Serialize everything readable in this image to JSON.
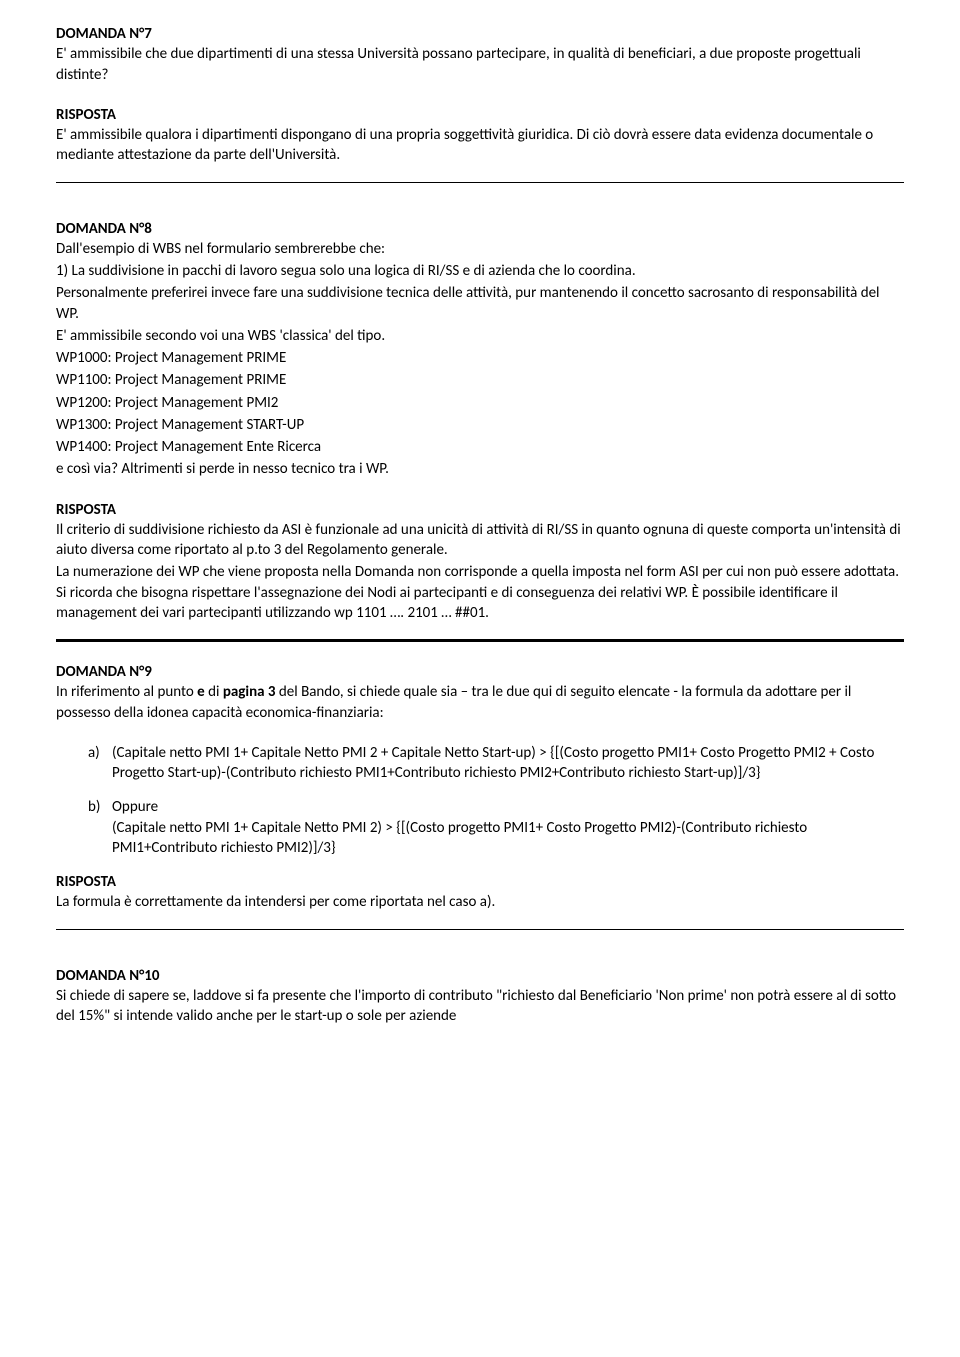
{
  "q7": {
    "heading": "DOMANDA N°7",
    "body": "E' ammissibile che due dipartimenti di una stessa Università possano partecipare, in qualità di beneficiari, a due proposte progettuali distinte?",
    "risposta_label": "RISPOSTA",
    "risposta_body": "E' ammissibile qualora i dipartimenti dispongano di una propria soggettività giuridica. Di ciò dovrà essere data evidenza documentale o mediante attestazione da parte dell'Università."
  },
  "q8": {
    "heading": "DOMANDA N°8",
    "body_p1": "Dall'esempio di WBS nel formulario sembrerebbe che:",
    "body_p2": "1) La suddivisione in pacchi di lavoro segua solo una logica di RI/SS e di azienda che lo coordina.",
    "body_p3": "Personalmente preferirei invece fare una suddivisione tecnica delle attività, pur mantenendo il concetto sacrosanto di responsabilità del WP.",
    "body_p4": "E' ammissibile secondo voi una WBS 'classica' del tipo.",
    "wp_lines": [
      "WP1000: Project Management PRIME",
      "WP1100: Project Management PRIME",
      "WP1200: Project Management PMI2",
      "WP1300: Project Management START-UP",
      "WP1400: Project Management Ente Ricerca"
    ],
    "body_p5": "e così via? Altrimenti si perde in nesso tecnico tra i WP.",
    "risposta_label": "RISPOSTA",
    "risposta_p1": "Il criterio di suddivisione richiesto da ASI è funzionale ad una unicità di attività di RI/SS in quanto ognuna di queste comporta un'intensità di aiuto diversa come riportato al p.to 3 del Regolamento generale.",
    "risposta_p2": "La numerazione dei WP che viene  proposta nella Domanda non corrisponde a quella imposta nel form ASI per cui non può essere adottata. Si ricorda che bisogna rispettare l'assegnazione dei Nodi ai partecipanti e di conseguenza dei relativi WP. È possibile identificare il management dei vari partecipanti utilizzando wp 1101 …. 2101 … ##01."
  },
  "q9": {
    "heading": "DOMANDA N°9",
    "intro_pre": "In riferimento al punto ",
    "intro_bold1": "e",
    "intro_mid": " di ",
    "intro_bold2": "pagina 3",
    "intro_post": " del Bando, si chiede quale sia – tra le due qui di seguito elencate - la formula da adottare per il possesso della idonea capacità economica-finanziaria:",
    "items": [
      {
        "marker": "a)",
        "text": " (Capitale netto PMI 1+ Capitale Netto PMI 2 + Capitale Netto Start-up) > {[(Costo progetto PMI1+ Costo Progetto PMI2 + Costo Progetto Start-up)-(Contributo richiesto PMI1+Contributo richiesto PMI2+Contributo richiesto Start-up)]/3}"
      },
      {
        "marker": "b)",
        "lead": "Oppure",
        "text": "(Capitale netto PMI 1+ Capitale Netto PMI 2) > {[(Costo progetto PMI1+ Costo Progetto PMI2)-(Contributo richiesto PMI1+Contributo richiesto PMI2)]/3}"
      }
    ],
    "risposta_label": "RISPOSTA",
    "risposta_body": "La formula è correttamente da intendersi per come riportata nel caso a)."
  },
  "q10": {
    "heading": "DOMANDA  N°10",
    "body": "Si chiede di sapere se, laddove si fa presente che l'importo di contributo \"richiesto dal Beneficiario 'Non prime' non potrà essere al di sotto del 15%\" si intende valido anche per le start-up o sole per aziende"
  }
}
